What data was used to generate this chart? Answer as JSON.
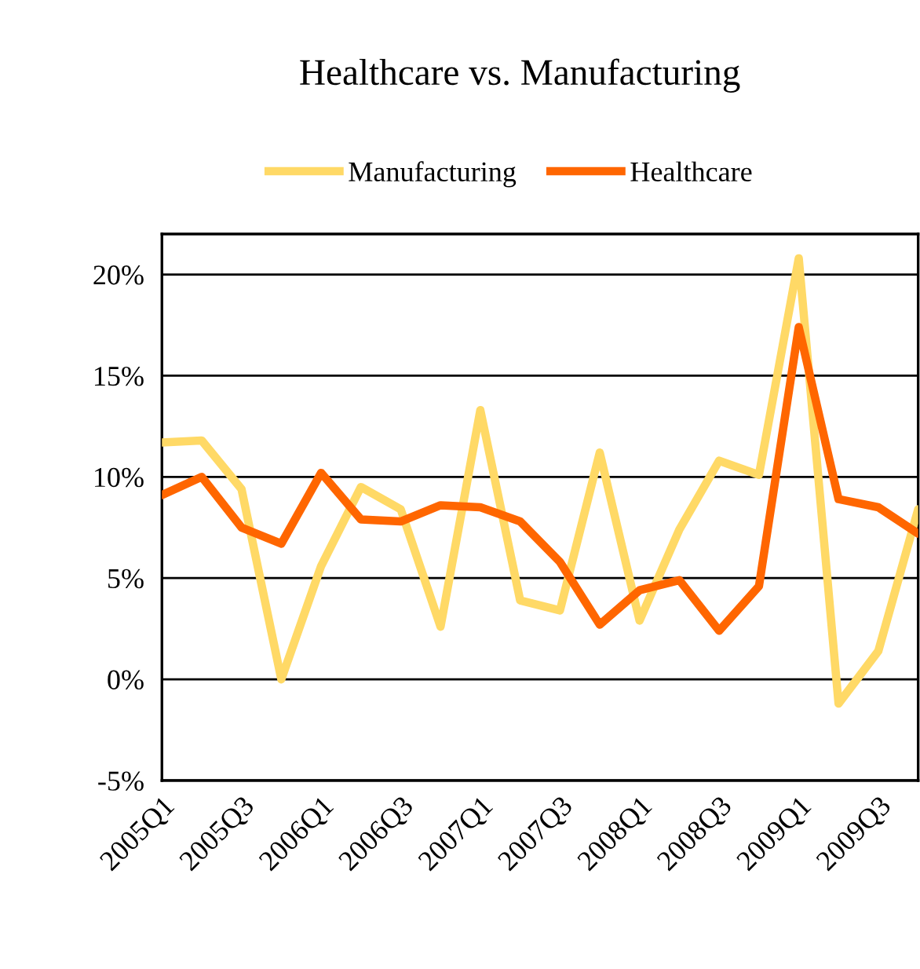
{
  "chart_data": {
    "type": "line",
    "title": "Healthcare vs. Manufacturing",
    "categories": [
      "2005Q1",
      null,
      "2005Q3",
      null,
      "2006Q1",
      null,
      "2006Q3",
      null,
      "2007Q1",
      null,
      "2007Q3",
      null,
      "2008Q1",
      null,
      "2008Q3",
      null,
      "2009Q1",
      null,
      "2009Q3",
      null
    ],
    "series": [
      {
        "name": "Manufacturing",
        "color": "#ffd966",
        "values": [
          11.7,
          11.8,
          9.4,
          0.0,
          5.6,
          9.5,
          8.4,
          2.6,
          13.3,
          3.9,
          3.4,
          11.2,
          2.9,
          7.4,
          10.8,
          10.1,
          20.8,
          -1.2,
          1.4,
          8.4
        ]
      },
      {
        "name": "Healthcare",
        "color": "#ff6600",
        "values": [
          9.1,
          10.0,
          7.5,
          6.7,
          10.2,
          7.9,
          7.8,
          8.6,
          8.5,
          7.8,
          5.8,
          2.7,
          4.4,
          4.9,
          2.4,
          4.6,
          17.4,
          8.9,
          8.5,
          7.2
        ]
      }
    ],
    "ylim": [
      -5,
      22
    ],
    "yticks": [
      {
        "value": -5,
        "label": "-5%"
      },
      {
        "value": 0,
        "label": "0%"
      },
      {
        "value": 5,
        "label": "5%"
      },
      {
        "value": 10,
        "label": "10%"
      },
      {
        "value": 15,
        "label": "15%"
      },
      {
        "value": 20,
        "label": "20%"
      }
    ],
    "grid": "y",
    "legend": "top",
    "marker": "none",
    "line_style": "solid"
  }
}
